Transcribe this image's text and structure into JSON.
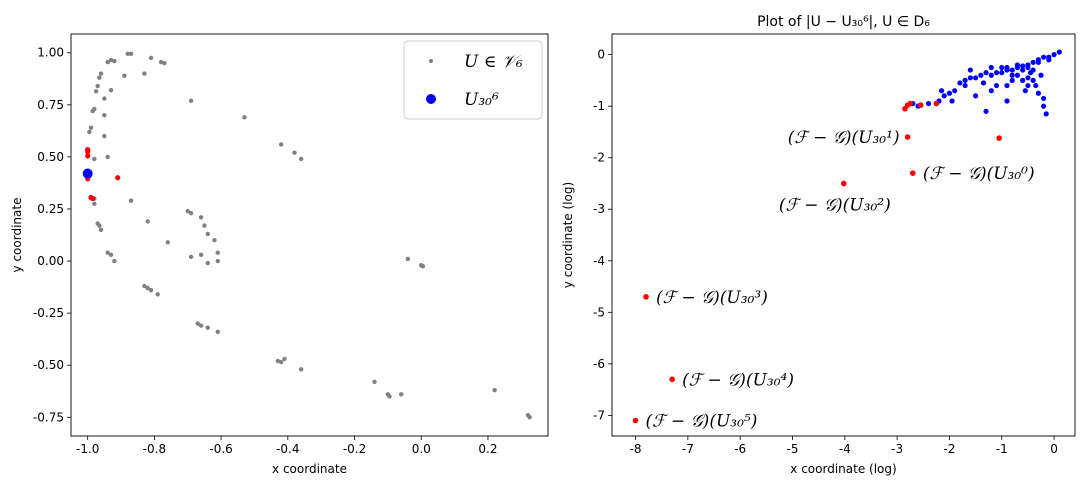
{
  "chart_data": [
    {
      "type": "scatter",
      "title": "",
      "xlabel": "x coordinate",
      "ylabel": "y coordinate",
      "xlim": [
        -1.05,
        0.38
      ],
      "ylim": [
        -0.84,
        1.09
      ],
      "xticks": [
        "-1.0",
        "-0.8",
        "-0.6",
        "-0.4",
        "-0.2",
        "0.0",
        "0.2"
      ],
      "xtick_values": [
        -1.0,
        -0.8,
        -0.6,
        -0.4,
        -0.2,
        0.0,
        0.2
      ],
      "yticks": [
        "-0.75",
        "-0.50",
        "-0.25",
        "0.00",
        "0.25",
        "0.50",
        "0.75",
        "1.00"
      ],
      "ytick_values": [
        -0.75,
        -0.5,
        -0.25,
        0.0,
        0.25,
        0.5,
        0.75,
        1.0
      ],
      "legend": {
        "position": "top-right",
        "entries": [
          {
            "label": "U ∈ 𝒱₆",
            "color": "#808080",
            "marker": "small-dot"
          },
          {
            "label": "U₃₀⁶",
            "color": "#0000ff",
            "marker": "large-dot"
          }
        ]
      },
      "series": [
        {
          "color": "#808080",
          "marker_size": 2.2,
          "points": [
            [
              -0.88,
              0.995
            ],
            [
              -0.87,
              0.995
            ],
            [
              -0.81,
              0.975
            ],
            [
              -0.78,
              0.955
            ],
            [
              -0.77,
              0.95
            ],
            [
              -0.83,
              0.9
            ],
            [
              -0.93,
              0.965
            ],
            [
              -0.92,
              0.96
            ],
            [
              -0.94,
              0.955
            ],
            [
              -0.89,
              0.89
            ],
            [
              -0.96,
              0.9
            ],
            [
              -0.965,
              0.88
            ],
            [
              -0.97,
              0.84
            ],
            [
              -0.975,
              0.815
            ],
            [
              -0.98,
              0.73
            ],
            [
              -0.985,
              0.72
            ],
            [
              -0.95,
              0.78
            ],
            [
              -0.93,
              0.82
            ],
            [
              -0.95,
              0.7
            ],
            [
              -0.99,
              0.64
            ],
            [
              -0.995,
              0.62
            ],
            [
              -0.95,
              0.6
            ],
            [
              -0.94,
              0.5
            ],
            [
              -0.98,
              0.49
            ],
            [
              -0.98,
              0.3
            ],
            [
              -0.98,
              0.275
            ],
            [
              -0.97,
              0.18
            ],
            [
              -0.965,
              0.17
            ],
            [
              -0.96,
              0.15
            ],
            [
              -0.94,
              0.04
            ],
            [
              -0.93,
              0.03
            ],
            [
              -0.92,
              0.0
            ],
            [
              -0.87,
              0.29
            ],
            [
              -0.82,
              0.19
            ],
            [
              -0.69,
              0.77
            ],
            [
              -0.53,
              0.69
            ],
            [
              -0.42,
              0.56
            ],
            [
              -0.38,
              0.52
            ],
            [
              -0.36,
              0.49
            ],
            [
              -0.7,
              0.24
            ],
            [
              -0.69,
              0.23
            ],
            [
              -0.66,
              0.21
            ],
            [
              -0.65,
              0.17
            ],
            [
              -0.64,
              0.13
            ],
            [
              -0.62,
              0.1
            ],
            [
              -0.61,
              0.04
            ],
            [
              -0.61,
              0.0
            ],
            [
              -0.76,
              0.09
            ],
            [
              -0.69,
              0.02
            ],
            [
              -0.66,
              0.03
            ],
            [
              -0.64,
              -0.01
            ],
            [
              -0.83,
              -0.12
            ],
            [
              -0.82,
              -0.13
            ],
            [
              -0.81,
              -0.14
            ],
            [
              -0.79,
              -0.16
            ],
            [
              -0.67,
              -0.3
            ],
            [
              -0.66,
              -0.31
            ],
            [
              -0.64,
              -0.32
            ],
            [
              -0.61,
              -0.34
            ],
            [
              -0.43,
              -0.48
            ],
            [
              -0.42,
              -0.485
            ],
            [
              -0.41,
              -0.47
            ],
            [
              -0.36,
              -0.52
            ],
            [
              -0.14,
              -0.58
            ],
            [
              -0.1,
              -0.64
            ],
            [
              -0.095,
              -0.65
            ],
            [
              -0.06,
              -0.64
            ],
            [
              -0.04,
              0.01
            ],
            [
              -0.0,
              -0.02
            ],
            [
              0.005,
              -0.025
            ],
            [
              0.22,
              -0.62
            ],
            [
              0.32,
              -0.74
            ],
            [
              0.325,
              -0.75
            ]
          ]
        },
        {
          "color": "#ff0000",
          "marker_size": 2.6,
          "points": [
            [
              -1.0,
              0.535
            ],
            [
              -1.0,
              0.525
            ],
            [
              -1.0,
              0.505
            ],
            [
              -1.0,
              0.43
            ],
            [
              -0.995,
              0.41
            ],
            [
              -1.0,
              0.395
            ],
            [
              -0.91,
              0.4
            ],
            [
              -0.99,
              0.305
            ],
            [
              -0.985,
              0.3
            ]
          ]
        },
        {
          "color": "#0000ff",
          "marker_size": 5,
          "points": [
            [
              -1.0,
              0.42
            ]
          ]
        }
      ]
    },
    {
      "type": "scatter",
      "title": "Plot of |U − U₃₀⁶|, U ∈ D₆",
      "xlabel": "x coordinate (log)",
      "ylabel": "y coordinate (log)",
      "xlim": [
        -8.45,
        0.4
      ],
      "ylim": [
        -7.4,
        0.4
      ],
      "xticks": [
        "-8",
        "-7",
        "-6",
        "-5",
        "-4",
        "-3",
        "-2",
        "-1",
        "0"
      ],
      "xtick_values": [
        -8,
        -7,
        -6,
        -5,
        -4,
        -3,
        -2,
        -1,
        0
      ],
      "yticks": [
        "-7",
        "-6",
        "-5",
        "-4",
        "-3",
        "-2",
        "-1",
        "0"
      ],
      "ytick_values": [
        -7,
        -6,
        -5,
        -4,
        -3,
        -2,
        -1,
        0
      ],
      "annotations": [
        {
          "text": "(ℱ − 𝒢)(U₃₀¹)",
          "x": -2.8,
          "y": -1.6,
          "side": "left"
        },
        {
          "text": "(ℱ − 𝒢)(U₃₀⁰)",
          "x": -2.7,
          "y": -2.3,
          "side": "right"
        },
        {
          "text": "(ℱ − 𝒢)(U₃₀²)",
          "x": -4.0,
          "y": -2.5,
          "side": "below-left"
        },
        {
          "text": "(ℱ − 𝒢)(U₃₀³)",
          "x": -7.8,
          "y": -4.7,
          "side": "right"
        },
        {
          "text": "(ℱ − 𝒢)(U₃₀⁴)",
          "x": -7.3,
          "y": -6.3,
          "side": "right"
        },
        {
          "text": "(ℱ − 𝒢)(U₃₀⁵)",
          "x": -8.0,
          "y": -7.1,
          "side": "right"
        }
      ],
      "series": [
        {
          "color": "#0000ff",
          "marker_size": 2.6,
          "points": [
            [
              0.1,
              0.05
            ],
            [
              0.0,
              0.0
            ],
            [
              -0.1,
              -0.05
            ],
            [
              -0.2,
              -0.05
            ],
            [
              -0.3,
              -0.1
            ],
            [
              -0.4,
              -0.15
            ],
            [
              -0.5,
              -0.2
            ],
            [
              -0.6,
              -0.22
            ],
            [
              -0.7,
              -0.25
            ],
            [
              -0.8,
              -0.3
            ],
            [
              -0.9,
              -0.3
            ],
            [
              -1.0,
              -0.35
            ],
            [
              -1.1,
              -0.35
            ],
            [
              -1.2,
              -0.4
            ],
            [
              -1.3,
              -0.35
            ],
            [
              -1.4,
              -0.4
            ],
            [
              -1.5,
              -0.45
            ],
            [
              -1.6,
              -0.45
            ],
            [
              -1.7,
              -0.5
            ],
            [
              -1.8,
              -0.55
            ],
            [
              -1.9,
              -0.7
            ],
            [
              -2.0,
              -0.75
            ],
            [
              -2.1,
              -0.8
            ],
            [
              -2.2,
              -0.9
            ],
            [
              -2.4,
              -0.95
            ],
            [
              -2.6,
              -1.0
            ],
            [
              -2.7,
              -0.95
            ],
            [
              -1.2,
              -0.25
            ],
            [
              -1.0,
              -0.25
            ],
            [
              -0.9,
              -0.25
            ],
            [
              -0.7,
              -0.2
            ],
            [
              -0.5,
              -0.25
            ],
            [
              -0.45,
              -0.35
            ],
            [
              -0.4,
              -0.5
            ],
            [
              -0.35,
              -0.6
            ],
            [
              -0.3,
              -0.75
            ],
            [
              -0.5,
              -0.6
            ],
            [
              -0.6,
              -0.5
            ],
            [
              -0.7,
              -0.4
            ],
            [
              -0.8,
              -0.5
            ],
            [
              -0.9,
              -0.6
            ],
            [
              -0.2,
              -0.85
            ],
            [
              -0.2,
              -1.0
            ],
            [
              -0.15,
              -1.15
            ],
            [
              -0.55,
              -0.7
            ],
            [
              -0.9,
              -0.9
            ],
            [
              -1.3,
              -1.1
            ],
            [
              -1.5,
              -0.8
            ],
            [
              -1.7,
              -0.6
            ],
            [
              -1.2,
              -0.7
            ],
            [
              -0.6,
              -0.3
            ],
            [
              -0.3,
              -0.15
            ],
            [
              -0.8,
              -0.4
            ],
            [
              -1.95,
              -0.9
            ],
            [
              -1.1,
              -0.6
            ],
            [
              -0.4,
              -0.3
            ],
            [
              -2.15,
              -0.7
            ],
            [
              -1.6,
              -0.3
            ],
            [
              -0.1,
              -0.1
            ],
            [
              -0.5,
              -0.45
            ],
            [
              -1.35,
              -0.55
            ],
            [
              -0.25,
              -0.4
            ]
          ]
        },
        {
          "color": "#ff0000",
          "marker_size": 2.8,
          "points": [
            [
              -2.85,
              -1.05
            ],
            [
              -2.8,
              -0.98
            ],
            [
              -2.75,
              -0.95
            ],
            [
              -2.55,
              -0.98
            ],
            [
              -2.25,
              -0.95
            ],
            [
              -1.05,
              -1.62
            ],
            [
              -2.8,
              -1.6
            ],
            [
              -2.7,
              -2.3
            ],
            [
              -4.02,
              -2.5
            ],
            [
              -7.8,
              -4.7
            ],
            [
              -7.3,
              -6.3
            ],
            [
              -8.0,
              -7.1
            ]
          ]
        }
      ]
    }
  ]
}
